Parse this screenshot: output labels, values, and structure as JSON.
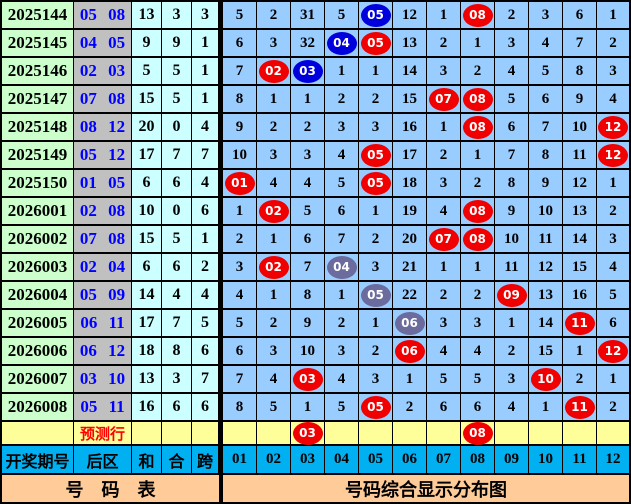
{
  "palette": {
    "periodBg": "#CCFFCC",
    "rearBg": "#C0C0C0",
    "statBg": "#CCFFFF",
    "gridBg": "#99CCFF",
    "predictBg": "#FFFF99",
    "headerBg": "#00B0F0",
    "footerBg": "#FFCC99",
    "ballRed": "#F00000",
    "ballBlue": "#0000DD",
    "ballSlate": "#6B6B9E",
    "rearText": "#0000FF",
    "predictText": "#FF0000"
  },
  "chart_data": {
    "type": "table",
    "title": "号码综合显示分布图",
    "left_title": "号　码　表",
    "headers": {
      "period": "开奖期号",
      "rear": "后区",
      "sum": "和",
      "tail": "合",
      "span": "跨"
    },
    "ball_columns": [
      "01",
      "02",
      "03",
      "04",
      "05",
      "06",
      "07",
      "08",
      "09",
      "10",
      "11",
      "12"
    ],
    "cell_encoding": "plain string = miss count; prefix R = red ball, B = blue ball, S = slate ball, remainder is drawn number",
    "rows": [
      {
        "period": "2025144",
        "rear": "05 08",
        "sum": "13",
        "tail": "3",
        "span": "3",
        "cells": [
          "5",
          "2",
          "31",
          "5",
          "B05",
          "12",
          "1",
          "R08",
          "2",
          "3",
          "6",
          "1"
        ]
      },
      {
        "period": "2025145",
        "rear": "04 05",
        "sum": "9",
        "tail": "9",
        "span": "1",
        "cells": [
          "6",
          "3",
          "32",
          "B04",
          "R05",
          "13",
          "2",
          "1",
          "3",
          "4",
          "7",
          "2"
        ]
      },
      {
        "period": "2025146",
        "rear": "02 03",
        "sum": "5",
        "tail": "5",
        "span": "1",
        "cells": [
          "7",
          "R02",
          "B03",
          "1",
          "1",
          "14",
          "3",
          "2",
          "4",
          "5",
          "8",
          "3"
        ]
      },
      {
        "period": "2025147",
        "rear": "07 08",
        "sum": "15",
        "tail": "5",
        "span": "1",
        "cells": [
          "8",
          "1",
          "1",
          "2",
          "2",
          "15",
          "R07",
          "R08",
          "5",
          "6",
          "9",
          "4"
        ]
      },
      {
        "period": "2025148",
        "rear": "08 12",
        "sum": "20",
        "tail": "0",
        "span": "4",
        "cells": [
          "9",
          "2",
          "2",
          "3",
          "3",
          "16",
          "1",
          "R08",
          "6",
          "7",
          "10",
          "R12"
        ]
      },
      {
        "period": "2025149",
        "rear": "05 12",
        "sum": "17",
        "tail": "7",
        "span": "7",
        "cells": [
          "10",
          "3",
          "3",
          "4",
          "R05",
          "17",
          "2",
          "1",
          "7",
          "8",
          "11",
          "R12"
        ]
      },
      {
        "period": "2025150",
        "rear": "01 05",
        "sum": "6",
        "tail": "6",
        "span": "4",
        "cells": [
          "R01",
          "4",
          "4",
          "5",
          "R05",
          "18",
          "3",
          "2",
          "8",
          "9",
          "12",
          "1"
        ]
      },
      {
        "period": "2026001",
        "rear": "02 08",
        "sum": "10",
        "tail": "0",
        "span": "6",
        "cells": [
          "1",
          "R02",
          "5",
          "6",
          "1",
          "19",
          "4",
          "R08",
          "9",
          "10",
          "13",
          "2"
        ]
      },
      {
        "period": "2026002",
        "rear": "07 08",
        "sum": "15",
        "tail": "5",
        "span": "1",
        "cells": [
          "2",
          "1",
          "6",
          "7",
          "2",
          "20",
          "R07",
          "R08",
          "10",
          "11",
          "14",
          "3"
        ]
      },
      {
        "period": "2026003",
        "rear": "02 04",
        "sum": "6",
        "tail": "6",
        "span": "2",
        "cells": [
          "3",
          "R02",
          "7",
          "S04",
          "3",
          "21",
          "1",
          "1",
          "11",
          "12",
          "15",
          "4"
        ]
      },
      {
        "period": "2026004",
        "rear": "05 09",
        "sum": "14",
        "tail": "4",
        "span": "4",
        "cells": [
          "4",
          "1",
          "8",
          "1",
          "S05",
          "22",
          "2",
          "2",
          "R09",
          "13",
          "16",
          "5"
        ]
      },
      {
        "period": "2026005",
        "rear": "06 11",
        "sum": "17",
        "tail": "7",
        "span": "5",
        "cells": [
          "5",
          "2",
          "9",
          "2",
          "1",
          "S06",
          "3",
          "3",
          "1",
          "14",
          "R11",
          "6"
        ]
      },
      {
        "period": "2026006",
        "rear": "06 12",
        "sum": "18",
        "tail": "8",
        "span": "6",
        "cells": [
          "6",
          "3",
          "10",
          "3",
          "2",
          "R06",
          "4",
          "4",
          "2",
          "15",
          "1",
          "R12"
        ]
      },
      {
        "period": "2026007",
        "rear": "03 10",
        "sum": "13",
        "tail": "3",
        "span": "7",
        "cells": [
          "7",
          "4",
          "R03",
          "4",
          "3",
          "1",
          "5",
          "5",
          "3",
          "R10",
          "2",
          "1"
        ]
      },
      {
        "period": "2026008",
        "rear": "05 11",
        "sum": "16",
        "tail": "6",
        "span": "6",
        "cells": [
          "8",
          "5",
          "1",
          "5",
          "R05",
          "2",
          "6",
          "6",
          "4",
          "1",
          "R11",
          "2"
        ]
      }
    ],
    "predict_label": "预测行",
    "predict_cells": [
      "",
      "",
      "R03",
      "",
      "",
      "",
      "",
      "R08",
      "",
      "",
      "",
      ""
    ]
  }
}
